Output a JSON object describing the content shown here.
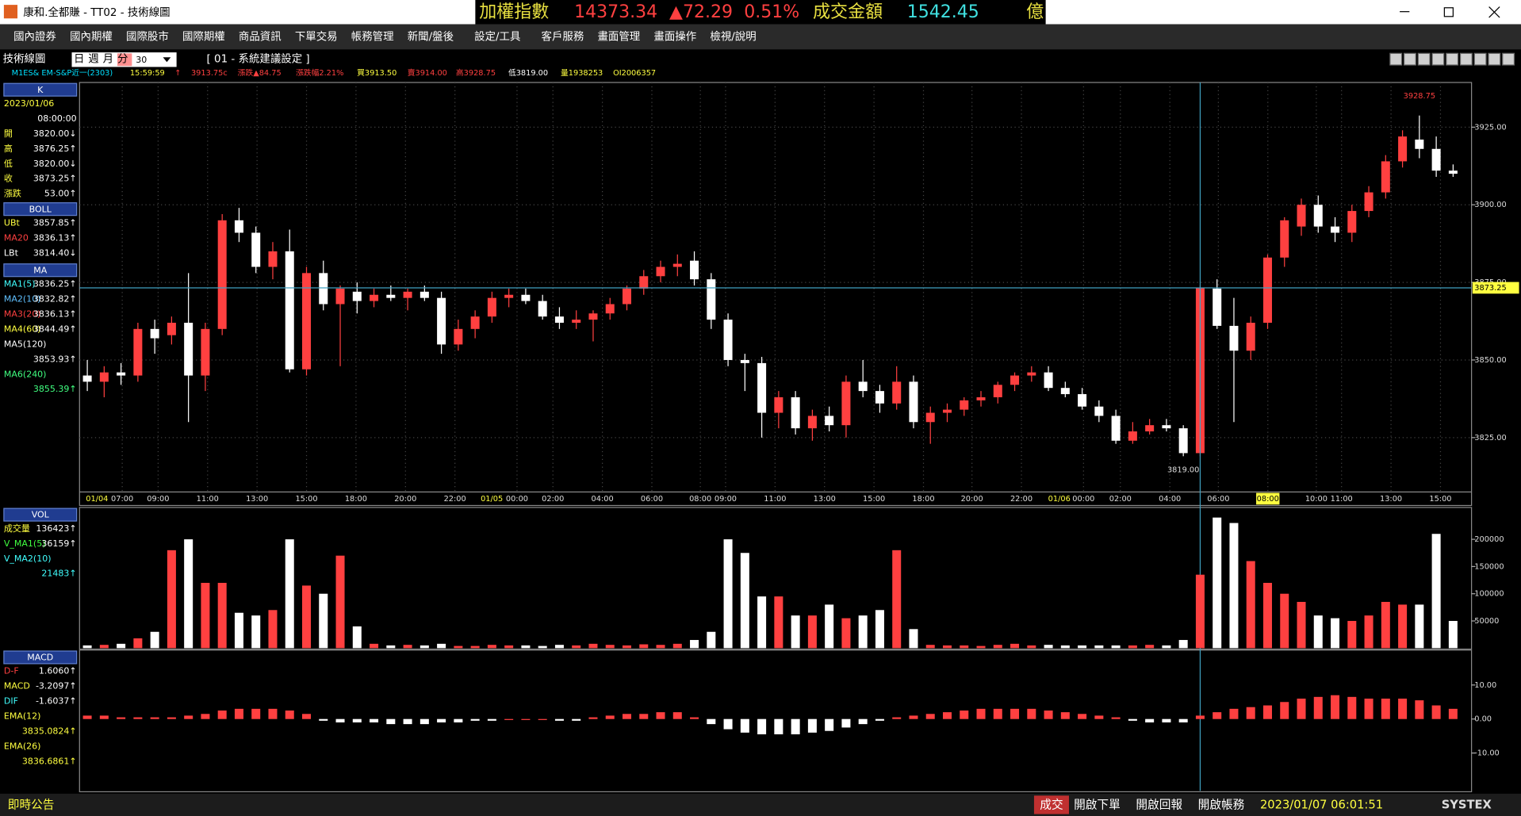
{
  "window": {
    "title": "康和.全都賺 - TT02 - 技術線圖"
  },
  "ticker": {
    "name": "加權指數",
    "index": "14373.34",
    "change": "▲72.29",
    "change_pct": "0.51%",
    "turnover_label": "成交金額",
    "turnover": "1542.45",
    "unit": "億"
  },
  "menu": [
    "國內證券",
    "國內期權",
    "國際股市",
    "國際期權",
    "商品資訊",
    "下單交易",
    "帳務管理",
    "新聞/盤後",
    "設定/工具",
    "客戶服務",
    "畫面管理",
    "畫面操作",
    "檢視/說明"
  ],
  "toolbar": {
    "title": "技術線圖",
    "periods": [
      "日",
      "週",
      "月",
      "分"
    ],
    "minutes": "30",
    "setting": "[ 01 - 系統建議設定 ]"
  },
  "info_line": [
    {
      "text": "M1ES&  EM-S&P近一(2303)",
      "color": "#00e0ff"
    },
    {
      "text": "15:59:59",
      "color": "#ffff40"
    },
    {
      "text": "↑",
      "color": "#ff4040"
    },
    {
      "text": "3913.75c",
      "color": "#ff4040"
    },
    {
      "text": "漲跌▲84.75",
      "color": "#ff4040"
    },
    {
      "text": "漲跌幅2.21%",
      "color": "#ff4040"
    },
    {
      "text": "買3913.50",
      "color": "#ffff40"
    },
    {
      "text": "賣3914.00",
      "color": "#ff4040"
    },
    {
      "text": "高3928.75",
      "color": "#ff4040"
    },
    {
      "text": "低3819.00",
      "color": "#ffffff"
    },
    {
      "text": "量1938253",
      "color": "#ffff40"
    },
    {
      "text": "OI2006357",
      "color": "#ffff40"
    }
  ],
  "side_panels": [
    {
      "header": "K",
      "rows": [
        {
          "label": "2023/01/06",
          "color": "#ffff40"
        },
        {
          "value": "08:00:00"
        },
        {
          "label": "開",
          "value": "3820.00↓",
          "color": "#ffff40"
        },
        {
          "label": "高",
          "value": "3876.25↑",
          "color": "#ffff40"
        },
        {
          "label": "低",
          "value": "3820.00↓",
          "color": "#ffff40"
        },
        {
          "label": "收",
          "value": "3873.25↑",
          "color": "#ffff40"
        },
        {
          "label": "漲跌",
          "value": "53.00↑",
          "color": "#ffff40"
        }
      ]
    },
    {
      "header": "BOLL",
      "rows": [
        {
          "label": "UBt",
          "value": "3857.85↑",
          "color": "#ffff40"
        },
        {
          "label": "MA20",
          "value": "3836.13↑",
          "color": "#ff4040"
        },
        {
          "label": "LBt",
          "value": "3814.40↓",
          "color": "#ffffff"
        }
      ]
    },
    {
      "header": "MA",
      "rows": [
        {
          "label": "MA1(5)",
          "value": "3836.25↑",
          "color": "#40ffff"
        },
        {
          "label": "MA2(10)",
          "value": "3832.82↑",
          "color": "#60c0ff"
        },
        {
          "label": "MA3(20)",
          "value": "3836.13↑",
          "color": "#ff4040"
        },
        {
          "label": "MA4(60)",
          "value": "3844.49↑",
          "color": "#ffff40"
        },
        {
          "label": "MA5(120)",
          "color": "#ffffff"
        },
        {
          "value": "3853.93↑"
        },
        {
          "label": "MA6(240)",
          "color": "#40ff80"
        },
        {
          "value": "3855.39↑"
        }
      ]
    },
    {
      "header": "VOL",
      "rows": [
        {
          "label": "成交量",
          "value": "136423↑",
          "color": "#ffff40"
        },
        {
          "label": "V_MA1(5)",
          "value": "36159↑",
          "color": "#40ff40"
        },
        {
          "label": "V_MA2(10)",
          "color": "#40ffff"
        },
        {
          "value": "21483↑"
        }
      ]
    },
    {
      "header": "MACD",
      "rows": [
        {
          "label": "D-F",
          "value": "1.6060↑",
          "color": "#ff4040"
        },
        {
          "label": "MACD",
          "value": "-3.2097↑",
          "color": "#ffff40"
        },
        {
          "label": "DIF",
          "value": "-1.6037↑",
          "color": "#40ffff"
        },
        {
          "label": "EMA(12)",
          "color": "#ffff40"
        },
        {
          "value": "3835.0824↑"
        },
        {
          "label": "EMA(26)",
          "color": "#ffff40"
        },
        {
          "value": "3836.6861↑"
        }
      ]
    }
  ],
  "chart_data": [
    {
      "type": "candlestick",
      "up_color": "#ff4040",
      "down_color": "#ffffff",
      "grid": true,
      "ylim": [
        3807.5,
        3939.4
      ],
      "yticks": [
        {
          "value": 3825,
          "label": "3825.00"
        },
        {
          "value": 3850,
          "label": "3850.00"
        },
        {
          "value": 3875,
          "label": "3875.00"
        },
        {
          "value": 3900,
          "label": "3900.00"
        },
        {
          "value": 3925,
          "label": "3925.00"
        }
      ],
      "date_labels": [
        "01/04",
        "01/05",
        "01/06"
      ],
      "time_labels": [
        "07:00",
        "09:00",
        "11:00",
        "13:00",
        "15:00",
        "18:00",
        "20:00",
        "22:00",
        "00:00",
        "02:00",
        "04:00",
        "06:00",
        "08:00",
        "09:00",
        "11:00",
        "13:00",
        "15:00",
        "18:00",
        "20:00",
        "22:00",
        "00:00",
        "02:00",
        "04:00",
        "06:00",
        "08:00",
        "10:00",
        "11:00",
        "13:00",
        "15:00"
      ],
      "last_price": {
        "value": 3873.25,
        "label": "3873.25"
      },
      "high_label": {
        "value": 3928.75,
        "label": "3928.75"
      },
      "low_label": {
        "value": 3819,
        "label": "3819.00"
      },
      "candles": [
        [
          3845,
          3850,
          3840,
          3843
        ],
        [
          3843,
          3848,
          3838,
          3846
        ],
        [
          3846,
          3849,
          3842,
          3845
        ],
        [
          3845,
          3862,
          3843,
          3860
        ],
        [
          3860,
          3863,
          3852,
          3857
        ],
        [
          3858,
          3864,
          3855,
          3862
        ],
        [
          3862,
          3878,
          3830,
          3845
        ],
        [
          3845,
          3862,
          3840,
          3860
        ],
        [
          3860,
          3897,
          3858,
          3895
        ],
        [
          3895,
          3899,
          3888,
          3891
        ],
        [
          3891,
          3893,
          3878,
          3880
        ],
        [
          3880,
          3888,
          3876,
          3885
        ],
        [
          3885,
          3892,
          3846,
          3847
        ],
        [
          3847,
          3880,
          3845,
          3878
        ],
        [
          3878,
          3882,
          3866,
          3868
        ],
        [
          3868,
          3874,
          3848,
          3873
        ],
        [
          3872,
          3875,
          3865,
          3869
        ],
        [
          3869,
          3873,
          3867,
          3871
        ],
        [
          3871,
          3874,
          3869,
          3870
        ],
        [
          3870,
          3873,
          3866,
          3872
        ],
        [
          3872,
          3874,
          3869,
          3870
        ],
        [
          3870,
          3872,
          3852,
          3855
        ],
        [
          3855,
          3863,
          3853,
          3860
        ],
        [
          3860,
          3866,
          3857,
          3864
        ],
        [
          3864,
          3872,
          3862,
          3870
        ],
        [
          3870,
          3873,
          3867,
          3871
        ],
        [
          3871,
          3873,
          3868,
          3869
        ],
        [
          3869,
          3871,
          3863,
          3864
        ],
        [
          3864,
          3867,
          3860,
          3862
        ],
        [
          3862,
          3866,
          3860,
          3863
        ],
        [
          3863,
          3866,
          3856,
          3865
        ],
        [
          3865,
          3870,
          3863,
          3868
        ],
        [
          3868,
          3874,
          3866,
          3873
        ],
        [
          3873,
          3879,
          3871,
          3877
        ],
        [
          3877,
          3882,
          3875,
          3880
        ],
        [
          3880,
          3884,
          3877,
          3881
        ],
        [
          3882,
          3885,
          3874,
          3876
        ],
        [
          3876,
          3878,
          3860,
          3863
        ],
        [
          3863,
          3865,
          3848,
          3850
        ],
        [
          3850,
          3852,
          3840,
          3849
        ],
        [
          3849,
          3851,
          3825,
          3833
        ],
        [
          3833,
          3840,
          3828,
          3838
        ],
        [
          3838,
          3840,
          3826,
          3828
        ],
        [
          3828,
          3834,
          3824,
          3832
        ],
        [
          3832,
          3835,
          3827,
          3829
        ],
        [
          3829,
          3845,
          3825,
          3843
        ],
        [
          3843,
          3850,
          3838,
          3840
        ],
        [
          3840,
          3842,
          3833,
          3836
        ],
        [
          3836,
          3848,
          3834,
          3843
        ],
        [
          3843,
          3845,
          3828,
          3830
        ],
        [
          3830,
          3835,
          3823,
          3833
        ],
        [
          3833,
          3836,
          3830,
          3834
        ],
        [
          3834,
          3838,
          3832,
          3837
        ],
        [
          3837,
          3840,
          3835,
          3838
        ],
        [
          3838,
          3843,
          3836,
          3842
        ],
        [
          3842,
          3846,
          3840,
          3845
        ],
        [
          3845,
          3848,
          3843,
          3846
        ],
        [
          3846,
          3848,
          3840,
          3841
        ],
        [
          3841,
          3843,
          3838,
          3839
        ],
        [
          3839,
          3841,
          3834,
          3835
        ],
        [
          3835,
          3837,
          3830,
          3832
        ],
        [
          3832,
          3834,
          3823,
          3824
        ],
        [
          3824,
          3830,
          3823,
          3827
        ],
        [
          3827,
          3831,
          3826,
          3829
        ],
        [
          3829,
          3831,
          3827,
          3828
        ],
        [
          3828,
          3829,
          3819,
          3820
        ],
        [
          3820,
          3874,
          3819,
          3873.25
        ],
        [
          3873,
          3876,
          3860,
          3861
        ],
        [
          3861,
          3870,
          3830,
          3853
        ],
        [
          3853,
          3864,
          3850,
          3862
        ],
        [
          3862,
          3884,
          3860,
          3883
        ],
        [
          3883,
          3896,
          3880,
          3895
        ],
        [
          3893,
          3902,
          3890,
          3900
        ],
        [
          3900,
          3903,
          3891,
          3893
        ],
        [
          3893,
          3896,
          3888,
          3891
        ],
        [
          3891,
          3900,
          3888,
          3898
        ],
        [
          3898,
          3906,
          3896,
          3904
        ],
        [
          3904,
          3916,
          3902,
          3914
        ],
        [
          3914,
          3924,
          3912,
          3922
        ],
        [
          3921,
          3928.75,
          3915,
          3918
        ],
        [
          3918,
          3922,
          3909,
          3911
        ],
        [
          3911,
          3913,
          3909,
          3910
        ]
      ]
    },
    {
      "type": "bar",
      "name": "VOL",
      "ylim": [
        0,
        255000
      ],
      "yticks": [
        50000,
        100000,
        150000,
        200000
      ],
      "values": [
        5000,
        6000,
        8000,
        18000,
        30000,
        180000,
        200000,
        120000,
        120000,
        65000,
        60000,
        70000,
        200000,
        115000,
        100000,
        170000,
        40000,
        8000,
        5000,
        6000,
        5000,
        8000,
        4000,
        4000,
        6000,
        5000,
        5000,
        4000,
        6000,
        5000,
        8000,
        6000,
        5000,
        7000,
        6000,
        8000,
        15000,
        30000,
        200000,
        175000,
        95000,
        95000,
        60000,
        60000,
        80000,
        55000,
        60000,
        70000,
        180000,
        35000,
        6000,
        5000,
        5000,
        4000,
        6000,
        8000,
        5000,
        6000,
        5000,
        5000,
        5000,
        5000,
        5000,
        6000,
        5000,
        15000,
        135000,
        240000,
        230000,
        160000,
        120000,
        100000,
        85000,
        60000,
        55000,
        50000,
        60000,
        85000,
        80000,
        80000,
        210000,
        50000
      ]
    },
    {
      "type": "bar",
      "name": "MACD",
      "ylim": [
        -21.1,
        19.7
      ],
      "yticks": [
        {
          "value": -10,
          "label": "-10.00"
        },
        {
          "value": 0,
          "label": "0.00"
        },
        {
          "value": 10,
          "label": "10.00"
        }
      ],
      "values": [
        1,
        1,
        0.5,
        0.5,
        0.5,
        0.5,
        1,
        1.5,
        2.5,
        3,
        3,
        3,
        2.5,
        1.5,
        -0.5,
        -1,
        -1,
        -1,
        -1.5,
        -1.5,
        -1.5,
        -1,
        -1,
        -0.5,
        -0.5,
        0,
        0,
        0,
        -0.5,
        -0.5,
        0.5,
        1,
        1.5,
        1.5,
        2,
        2,
        0.5,
        -1.5,
        -3,
        -4,
        -4.5,
        -4.5,
        -4.5,
        -4,
        -3.5,
        -2.5,
        -1.5,
        -0.5,
        0.5,
        1,
        1.5,
        2,
        2.5,
        3,
        3,
        3,
        3,
        2.5,
        2,
        1.5,
        1,
        0.5,
        -0.5,
        -1,
        -1,
        -1,
        1,
        2,
        3,
        3.5,
        4,
        5,
        6,
        6.5,
        7,
        6.5,
        6,
        6,
        6,
        5.5,
        4,
        3
      ]
    }
  ],
  "status": {
    "notice": "即時公告",
    "trade": "成交",
    "buttons": [
      "開啟下單",
      "開啟回報",
      "開啟帳務"
    ],
    "clock": "2023/01/07 06:01:51",
    "brand": "SYSTEX"
  }
}
